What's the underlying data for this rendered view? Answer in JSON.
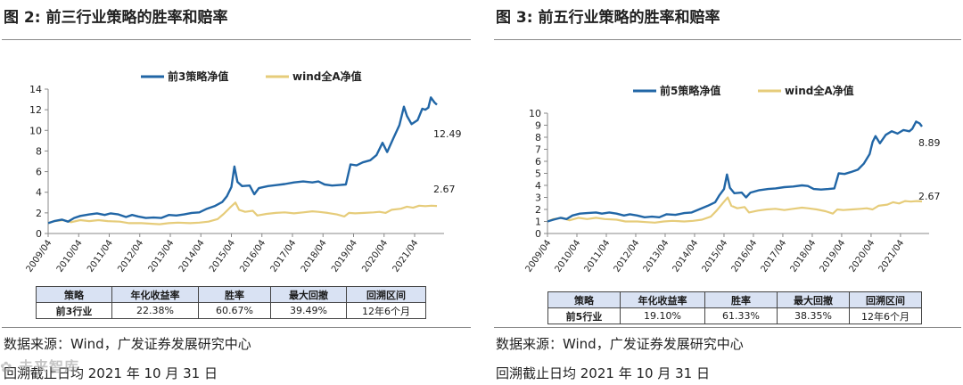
{
  "colors": {
    "strategy": "#2166a6",
    "wind": "#e6cc7a",
    "header_bg": "#d9e2f3"
  },
  "watermark": "✿ 未来智库",
  "panels": [
    {
      "fig_label": "图 2:",
      "fig_title": "前三行业策略的胜率和赔率",
      "source": "数据来源：Wind，广发证券发展研究中心",
      "date_note": "回溯截止日均 2021 年 10 月 31 日",
      "table": {
        "headers": [
          "策略",
          "年化收益率",
          "胜率",
          "最大回撤",
          "回溯区间"
        ],
        "row": [
          "前3行业",
          "22.38%",
          "60.67%",
          "39.49%",
          "12年6个月"
        ]
      }
    },
    {
      "fig_label": "图 3:",
      "fig_title": "前五行业策略的胜率和赔率",
      "source": "数据来源：Wind，广发证券发展研究中心",
      "date_note": "回溯截止日均 2021 年 10 月 31 日",
      "table": {
        "headers": [
          "策略",
          "年化收益率",
          "胜率",
          "最大回撤",
          "回溯区间"
        ],
        "row": [
          "前5行业",
          "19.10%",
          "61.33%",
          "38.35%",
          "12年6个月"
        ]
      }
    }
  ],
  "chart_data": [
    {
      "type": "line",
      "x": [
        "2009/04",
        "2010/04",
        "2011/04",
        "2012/04",
        "2013/04",
        "2014/04",
        "2015/04",
        "2016/04",
        "2017/04",
        "2018/04",
        "2019/04",
        "2020/04",
        "2021/04"
      ],
      "ylim": [
        0,
        14
      ],
      "yticks": [
        0,
        2,
        4,
        6,
        8,
        10,
        12,
        14
      ],
      "legend": "top-center",
      "series": [
        {
          "name": "前3策略净值",
          "end_label": "12.49",
          "points": [
            [
              2009.25,
              1.0
            ],
            [
              2009.45,
              1.2
            ],
            [
              2009.7,
              1.35
            ],
            [
              2009.9,
              1.15
            ],
            [
              2010.1,
              1.5
            ],
            [
              2010.3,
              1.7
            ],
            [
              2010.6,
              1.85
            ],
            [
              2010.85,
              1.95
            ],
            [
              2011.1,
              1.8
            ],
            [
              2011.3,
              1.95
            ],
            [
              2011.55,
              1.85
            ],
            [
              2011.8,
              1.6
            ],
            [
              2012.0,
              1.8
            ],
            [
              2012.2,
              1.65
            ],
            [
              2012.45,
              1.5
            ],
            [
              2012.7,
              1.55
            ],
            [
              2012.95,
              1.5
            ],
            [
              2013.2,
              1.8
            ],
            [
              2013.45,
              1.75
            ],
            [
              2013.7,
              1.85
            ],
            [
              2013.95,
              2.0
            ],
            [
              2014.2,
              2.05
            ],
            [
              2014.45,
              2.4
            ],
            [
              2014.7,
              2.65
            ],
            [
              2014.95,
              3.05
            ],
            [
              2015.1,
              3.6
            ],
            [
              2015.25,
              4.5
            ],
            [
              2015.35,
              6.5
            ],
            [
              2015.45,
              5.0
            ],
            [
              2015.6,
              4.6
            ],
            [
              2015.85,
              4.65
            ],
            [
              2016.0,
              3.8
            ],
            [
              2016.15,
              4.4
            ],
            [
              2016.45,
              4.6
            ],
            [
              2016.75,
              4.7
            ],
            [
              2017.0,
              4.8
            ],
            [
              2017.3,
              4.95
            ],
            [
              2017.6,
              5.05
            ],
            [
              2017.9,
              4.95
            ],
            [
              2018.1,
              5.05
            ],
            [
              2018.3,
              4.75
            ],
            [
              2018.55,
              4.65
            ],
            [
              2018.8,
              4.7
            ],
            [
              2019.0,
              4.75
            ],
            [
              2019.15,
              6.7
            ],
            [
              2019.35,
              6.6
            ],
            [
              2019.55,
              6.9
            ],
            [
              2019.8,
              7.1
            ],
            [
              2020.0,
              7.6
            ],
            [
              2020.2,
              8.8
            ],
            [
              2020.35,
              7.9
            ],
            [
              2020.55,
              9.2
            ],
            [
              2020.75,
              10.5
            ],
            [
              2020.9,
              12.3
            ],
            [
              2021.0,
              11.4
            ],
            [
              2021.15,
              10.6
            ],
            [
              2021.35,
              11.0
            ],
            [
              2021.5,
              12.1
            ],
            [
              2021.6,
              12.0
            ],
            [
              2021.7,
              12.2
            ],
            [
              2021.78,
              13.2
            ],
            [
              2021.9,
              12.7
            ],
            [
              2021.98,
              12.49
            ]
          ]
        },
        {
          "name": "wind全A净值",
          "end_label": "2.67",
          "points": [
            [
              2009.25,
              1.0
            ],
            [
              2009.45,
              1.2
            ],
            [
              2009.75,
              1.3
            ],
            [
              2010.0,
              1.1
            ],
            [
              2010.3,
              1.3
            ],
            [
              2010.6,
              1.2
            ],
            [
              2010.9,
              1.3
            ],
            [
              2011.2,
              1.2
            ],
            [
              2011.6,
              1.15
            ],
            [
              2011.9,
              1.0
            ],
            [
              2012.3,
              1.0
            ],
            [
              2012.6,
              0.95
            ],
            [
              2012.9,
              0.9
            ],
            [
              2013.2,
              1.0
            ],
            [
              2013.5,
              1.05
            ],
            [
              2013.9,
              1.0
            ],
            [
              2014.2,
              1.05
            ],
            [
              2014.5,
              1.15
            ],
            [
              2014.8,
              1.4
            ],
            [
              2015.0,
              1.9
            ],
            [
              2015.2,
              2.5
            ],
            [
              2015.38,
              3.0
            ],
            [
              2015.5,
              2.3
            ],
            [
              2015.7,
              2.1
            ],
            [
              2015.95,
              2.2
            ],
            [
              2016.1,
              1.75
            ],
            [
              2016.4,
              1.9
            ],
            [
              2016.7,
              2.0
            ],
            [
              2017.0,
              2.05
            ],
            [
              2017.3,
              1.95
            ],
            [
              2017.6,
              2.05
            ],
            [
              2017.9,
              2.15
            ],
            [
              2018.1,
              2.1
            ],
            [
              2018.4,
              2.0
            ],
            [
              2018.7,
              1.85
            ],
            [
              2018.95,
              1.65
            ],
            [
              2019.1,
              2.0
            ],
            [
              2019.3,
              1.95
            ],
            [
              2019.6,
              2.0
            ],
            [
              2019.9,
              2.05
            ],
            [
              2020.1,
              2.1
            ],
            [
              2020.3,
              2.0
            ],
            [
              2020.5,
              2.3
            ],
            [
              2020.8,
              2.4
            ],
            [
              2021.0,
              2.6
            ],
            [
              2021.2,
              2.5
            ],
            [
              2021.4,
              2.7
            ],
            [
              2021.6,
              2.65
            ],
            [
              2021.8,
              2.7
            ],
            [
              2021.98,
              2.67
            ]
          ]
        }
      ]
    },
    {
      "type": "line",
      "x": [
        "2009/04",
        "2010/04",
        "2011/04",
        "2012/04",
        "2013/04",
        "2014/04",
        "2015/04",
        "2016/04",
        "2017/04",
        "2018/04",
        "2019/04",
        "2020/04",
        "2021/04"
      ],
      "ylim": [
        0,
        10
      ],
      "yticks": [
        0,
        1,
        2,
        3,
        4,
        5,
        6,
        7,
        8,
        9,
        10
      ],
      "legend": "top-center",
      "series": [
        {
          "name": "前5策略净值",
          "end_label": "8.89",
          "points": [
            [
              2009.25,
              1.0
            ],
            [
              2009.45,
              1.15
            ],
            [
              2009.7,
              1.3
            ],
            [
              2009.9,
              1.2
            ],
            [
              2010.1,
              1.5
            ],
            [
              2010.35,
              1.65
            ],
            [
              2010.6,
              1.7
            ],
            [
              2010.9,
              1.75
            ],
            [
              2011.1,
              1.65
            ],
            [
              2011.35,
              1.75
            ],
            [
              2011.6,
              1.65
            ],
            [
              2011.85,
              1.5
            ],
            [
              2012.05,
              1.6
            ],
            [
              2012.3,
              1.5
            ],
            [
              2012.55,
              1.35
            ],
            [
              2012.8,
              1.4
            ],
            [
              2013.05,
              1.35
            ],
            [
              2013.3,
              1.6
            ],
            [
              2013.6,
              1.55
            ],
            [
              2013.9,
              1.7
            ],
            [
              2014.15,
              1.75
            ],
            [
              2014.4,
              2.0
            ],
            [
              2014.7,
              2.3
            ],
            [
              2014.95,
              2.6
            ],
            [
              2015.1,
              3.2
            ],
            [
              2015.25,
              3.7
            ],
            [
              2015.35,
              4.9
            ],
            [
              2015.45,
              3.8
            ],
            [
              2015.6,
              3.35
            ],
            [
              2015.85,
              3.4
            ],
            [
              2016.0,
              3.0
            ],
            [
              2016.15,
              3.4
            ],
            [
              2016.45,
              3.6
            ],
            [
              2016.75,
              3.7
            ],
            [
              2017.0,
              3.75
            ],
            [
              2017.3,
              3.85
            ],
            [
              2017.6,
              3.9
            ],
            [
              2017.9,
              4.0
            ],
            [
              2018.1,
              3.95
            ],
            [
              2018.3,
              3.7
            ],
            [
              2018.55,
              3.65
            ],
            [
              2018.8,
              3.7
            ],
            [
              2019.0,
              3.75
            ],
            [
              2019.15,
              5.0
            ],
            [
              2019.35,
              4.95
            ],
            [
              2019.55,
              5.1
            ],
            [
              2019.8,
              5.3
            ],
            [
              2020.0,
              5.8
            ],
            [
              2020.2,
              6.6
            ],
            [
              2020.3,
              7.6
            ],
            [
              2020.4,
              8.1
            ],
            [
              2020.55,
              7.5
            ],
            [
              2020.75,
              8.2
            ],
            [
              2020.95,
              8.5
            ],
            [
              2021.15,
              8.3
            ],
            [
              2021.35,
              8.6
            ],
            [
              2021.55,
              8.5
            ],
            [
              2021.65,
              8.7
            ],
            [
              2021.78,
              9.3
            ],
            [
              2021.9,
              9.15
            ],
            [
              2021.98,
              8.89
            ]
          ]
        },
        {
          "name": "wind全A净值",
          "end_label": "2.67",
          "points": [
            [
              2009.25,
              1.0
            ],
            [
              2009.45,
              1.2
            ],
            [
              2009.75,
              1.3
            ],
            [
              2010.0,
              1.1
            ],
            [
              2010.3,
              1.3
            ],
            [
              2010.6,
              1.2
            ],
            [
              2010.9,
              1.3
            ],
            [
              2011.2,
              1.2
            ],
            [
              2011.6,
              1.15
            ],
            [
              2011.9,
              1.0
            ],
            [
              2012.3,
              1.0
            ],
            [
              2012.6,
              0.95
            ],
            [
              2012.9,
              0.9
            ],
            [
              2013.2,
              1.0
            ],
            [
              2013.5,
              1.05
            ],
            [
              2013.9,
              1.0
            ],
            [
              2014.2,
              1.05
            ],
            [
              2014.5,
              1.15
            ],
            [
              2014.8,
              1.4
            ],
            [
              2015.0,
              1.9
            ],
            [
              2015.2,
              2.5
            ],
            [
              2015.38,
              3.0
            ],
            [
              2015.5,
              2.3
            ],
            [
              2015.7,
              2.1
            ],
            [
              2015.95,
              2.2
            ],
            [
              2016.1,
              1.75
            ],
            [
              2016.4,
              1.9
            ],
            [
              2016.7,
              2.0
            ],
            [
              2017.0,
              2.05
            ],
            [
              2017.3,
              1.95
            ],
            [
              2017.6,
              2.05
            ],
            [
              2017.9,
              2.15
            ],
            [
              2018.1,
              2.1
            ],
            [
              2018.4,
              2.0
            ],
            [
              2018.7,
              1.85
            ],
            [
              2018.95,
              1.65
            ],
            [
              2019.1,
              2.0
            ],
            [
              2019.3,
              1.95
            ],
            [
              2019.6,
              2.0
            ],
            [
              2019.9,
              2.05
            ],
            [
              2020.1,
              2.1
            ],
            [
              2020.3,
              2.0
            ],
            [
              2020.5,
              2.3
            ],
            [
              2020.8,
              2.4
            ],
            [
              2021.0,
              2.6
            ],
            [
              2021.2,
              2.5
            ],
            [
              2021.4,
              2.7
            ],
            [
              2021.6,
              2.65
            ],
            [
              2021.8,
              2.7
            ],
            [
              2021.98,
              2.67
            ]
          ]
        }
      ]
    }
  ]
}
